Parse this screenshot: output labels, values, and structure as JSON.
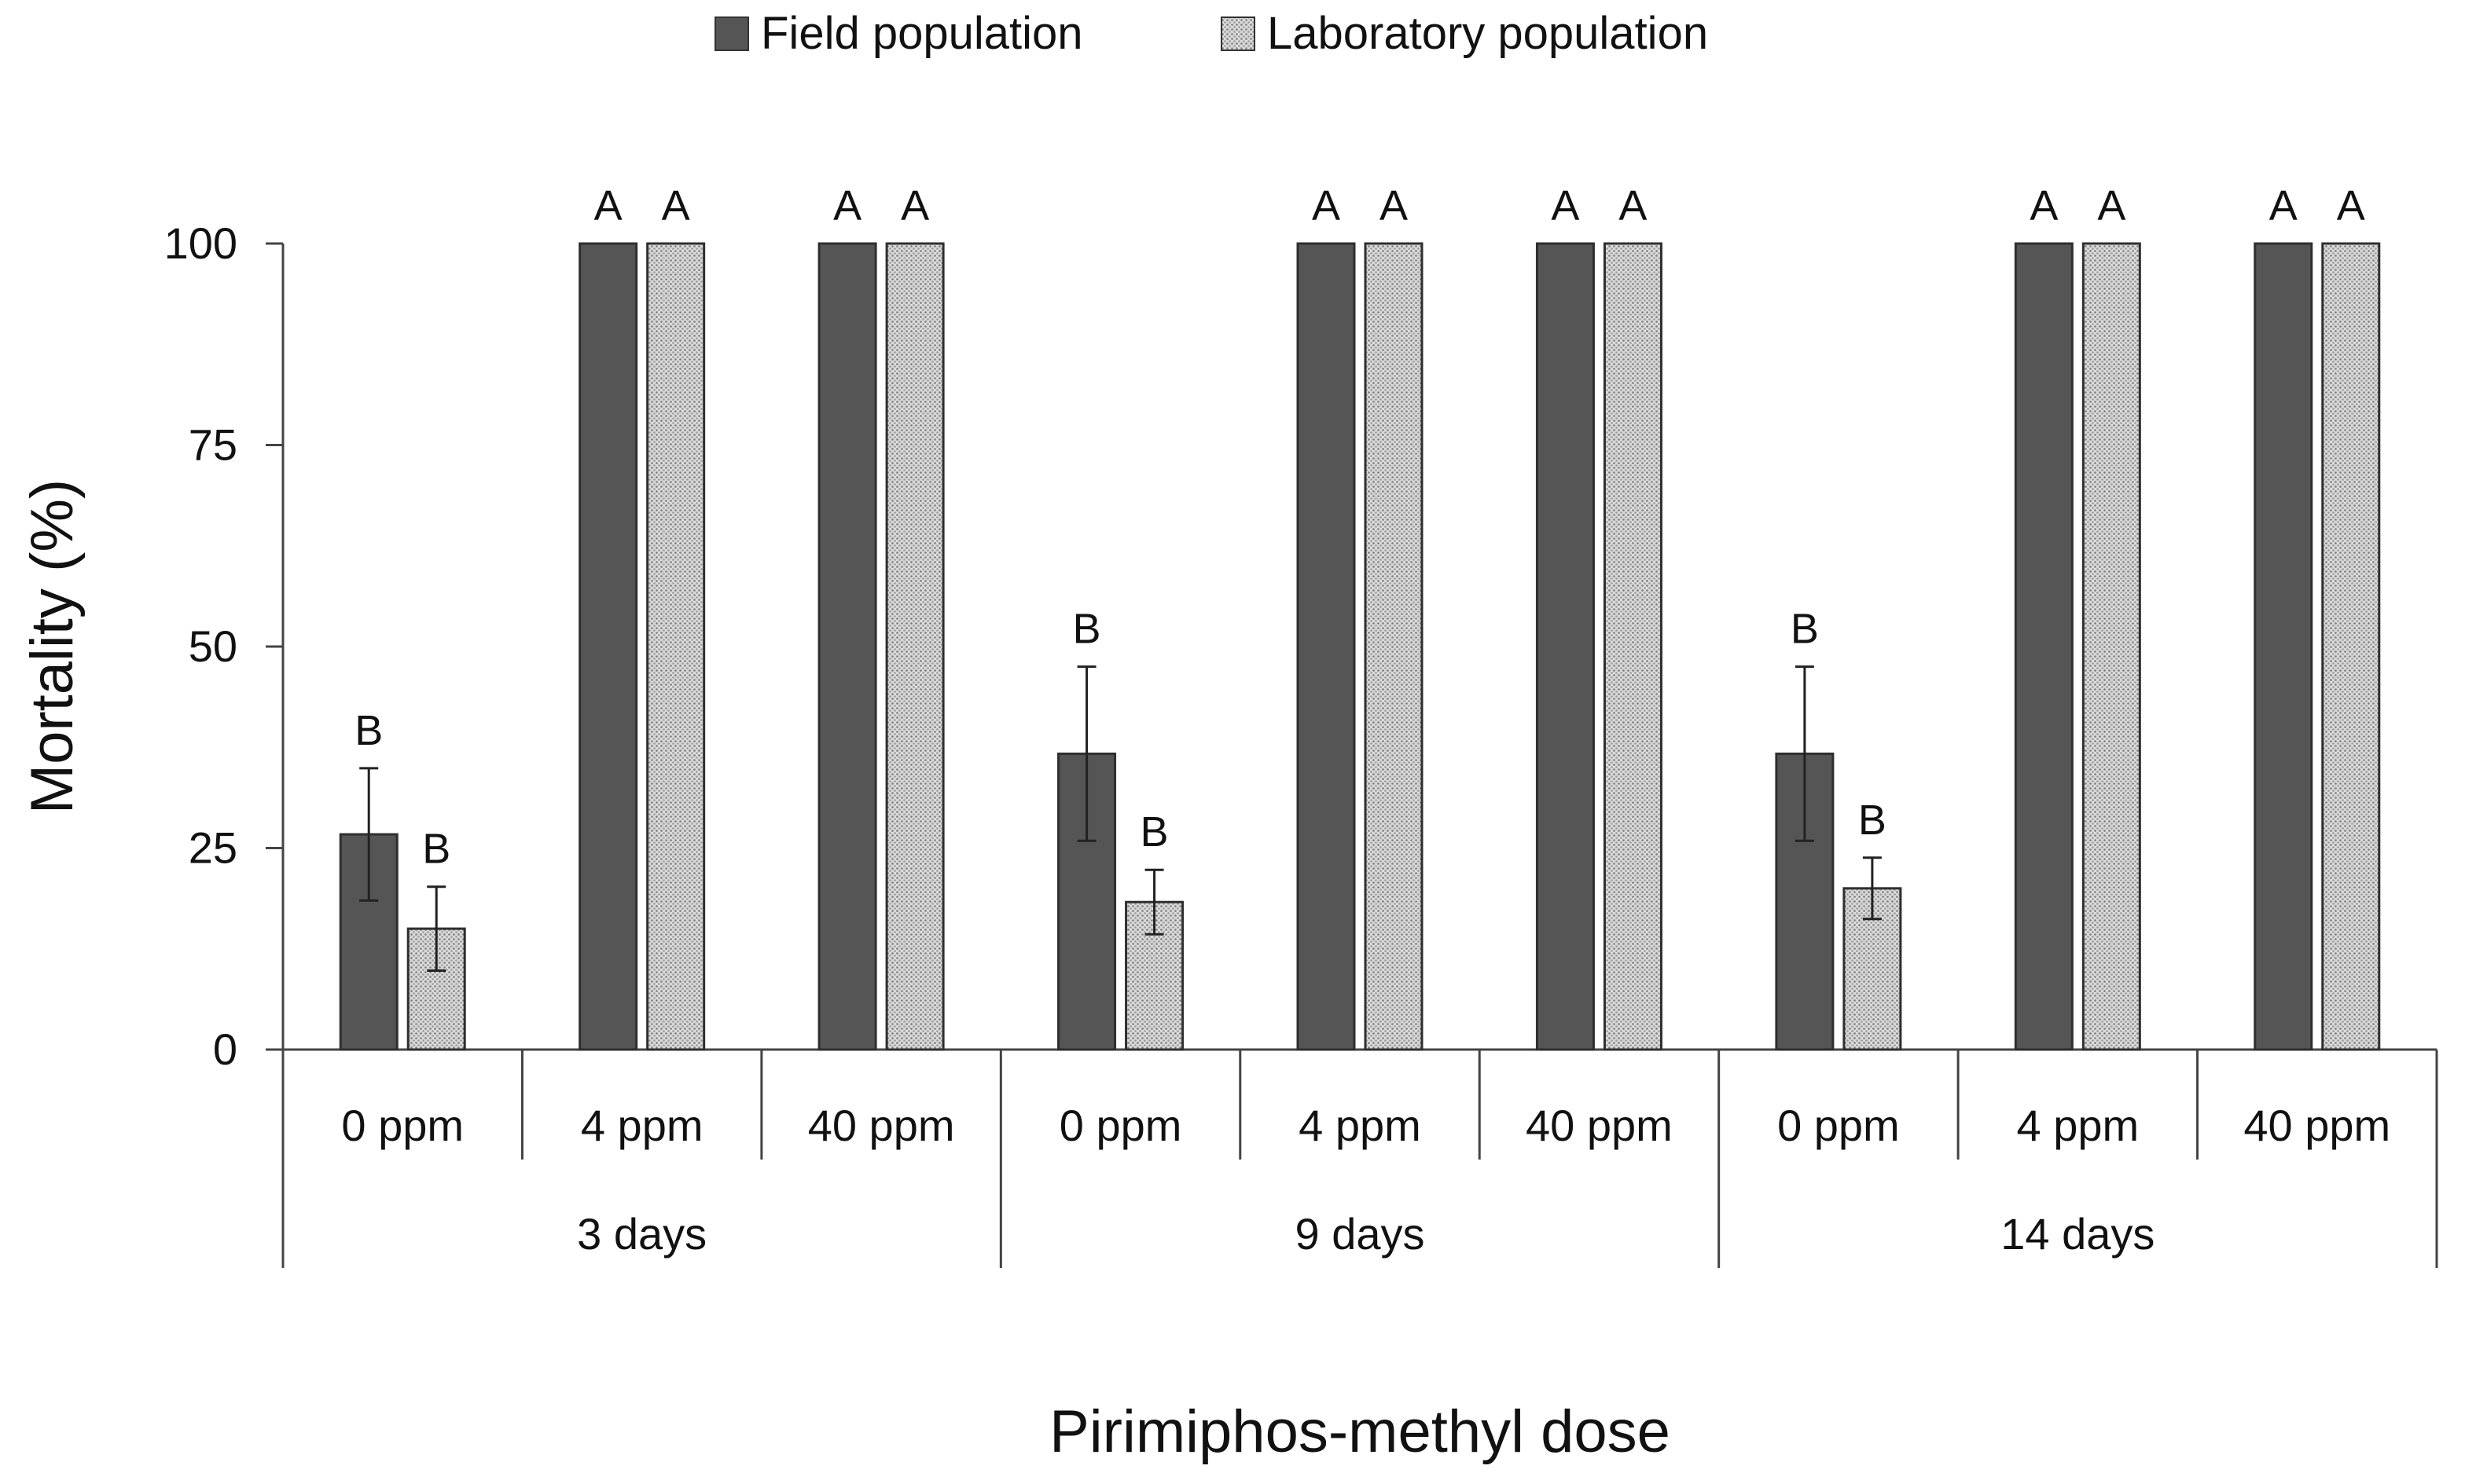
{
  "chart_data": {
    "type": "bar",
    "title": "",
    "xlabel": "Pirimiphos-methyl dose",
    "ylabel": "Mortality (%)",
    "ylim": [
      0,
      100
    ],
    "yticks": [
      "0",
      "25",
      "50",
      "75",
      "100"
    ],
    "legend_position": "top-center",
    "groups": [
      {
        "label": "3 days",
        "categories": [
          "0 ppm",
          "4 ppm",
          "40 ppm"
        ]
      },
      {
        "label": "9 days",
        "categories": [
          "0 ppm",
          "4 ppm",
          "40 ppm"
        ]
      },
      {
        "label": "14 days",
        "categories": [
          "0 ppm",
          "4 ppm",
          "40 ppm"
        ]
      }
    ],
    "series": [
      {
        "name": "Field population",
        "color": "#555555",
        "pattern": "solid",
        "values": [
          26.7,
          100,
          100,
          36.7,
          100,
          100,
          36.7,
          100,
          100
        ],
        "errors": [
          8.2,
          0,
          0,
          10.8,
          0,
          0,
          10.8,
          0,
          0
        ],
        "letters": [
          "B",
          "A",
          "A",
          "B",
          "A",
          "A",
          "B",
          "A",
          "A"
        ]
      },
      {
        "name": "Laboratory population",
        "color": "#c8c8c8",
        "pattern": "dotted",
        "values": [
          15,
          100,
          100,
          18.3,
          100,
          100,
          20,
          100,
          100
        ],
        "errors": [
          5.2,
          0,
          0,
          4.0,
          0,
          0,
          3.8,
          0,
          0
        ],
        "letters": [
          "B",
          "A",
          "A",
          "B",
          "A",
          "A",
          "B",
          "A",
          "A"
        ]
      }
    ]
  }
}
